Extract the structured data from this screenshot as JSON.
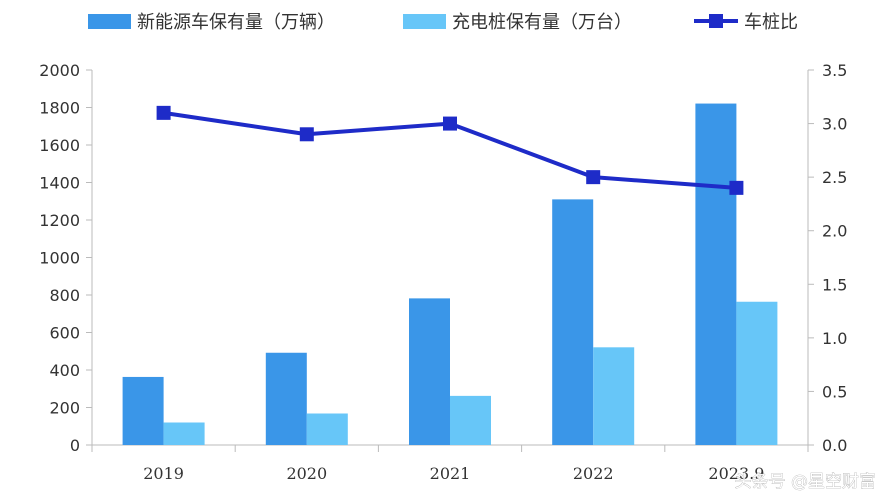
{
  "chart_data": {
    "type": "bar",
    "categories": [
      "2019",
      "2020",
      "2021",
      "2022",
      "2023.9"
    ],
    "series": [
      {
        "name": "新能源车保有量（万辆）",
        "kind": "bar",
        "axis": "left",
        "color": "#3A96E8",
        "values": [
          363,
          492,
          782,
          1310,
          1821
        ]
      },
      {
        "name": "充电桩保有量（万台）",
        "kind": "bar",
        "axis": "left",
        "color": "#67C6F8",
        "values": [
          120,
          168,
          262,
          521,
          764
        ]
      },
      {
        "name": "车桩比",
        "kind": "line",
        "axis": "right",
        "color": "#1E2BC8",
        "values": [
          3.1,
          2.9,
          3.0,
          2.5,
          2.4
        ]
      }
    ],
    "y_left": {
      "ylim": [
        0,
        2000
      ],
      "ticks": [
        "0",
        "200",
        "400",
        "600",
        "800",
        "1000",
        "1200",
        "1400",
        "1600",
        "1800",
        "2000"
      ]
    },
    "y_right": {
      "ylim": [
        0,
        3.5
      ],
      "ticks": [
        "0.0",
        "0.5",
        "1.0",
        "1.5",
        "2.0",
        "2.5",
        "3.0",
        "3.5"
      ]
    },
    "legend": "top",
    "grid": false
  },
  "watermark": "头条号 @星空财富"
}
